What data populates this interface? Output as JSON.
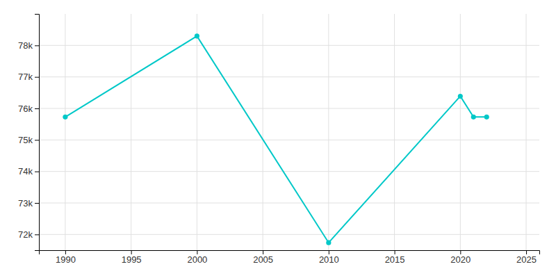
{
  "chart_data": {
    "type": "line",
    "x": [
      1990,
      2000,
      2010,
      2020,
      2021,
      2022
    ],
    "values": [
      75728,
      78296,
      71739,
      76387,
      75728,
      75728
    ],
    "color": "#00C8C8",
    "marker": "o",
    "xlim": [
      1988,
      2026
    ],
    "xticks": [
      1990,
      1995,
      2000,
      2005,
      2010,
      2015,
      2020,
      2025
    ],
    "ylim": [
      71500,
      79000
    ],
    "yticks": [
      {
        "value": 72000,
        "label": "72k"
      },
      {
        "value": 73000,
        "label": "73k"
      },
      {
        "value": 74000,
        "label": "74k"
      },
      {
        "value": 75000,
        "label": "75k"
      },
      {
        "value": 76000,
        "label": "76k"
      },
      {
        "value": 77000,
        "label": "77k"
      },
      {
        "value": 78000,
        "label": "78k"
      }
    ],
    "grid": true
  }
}
